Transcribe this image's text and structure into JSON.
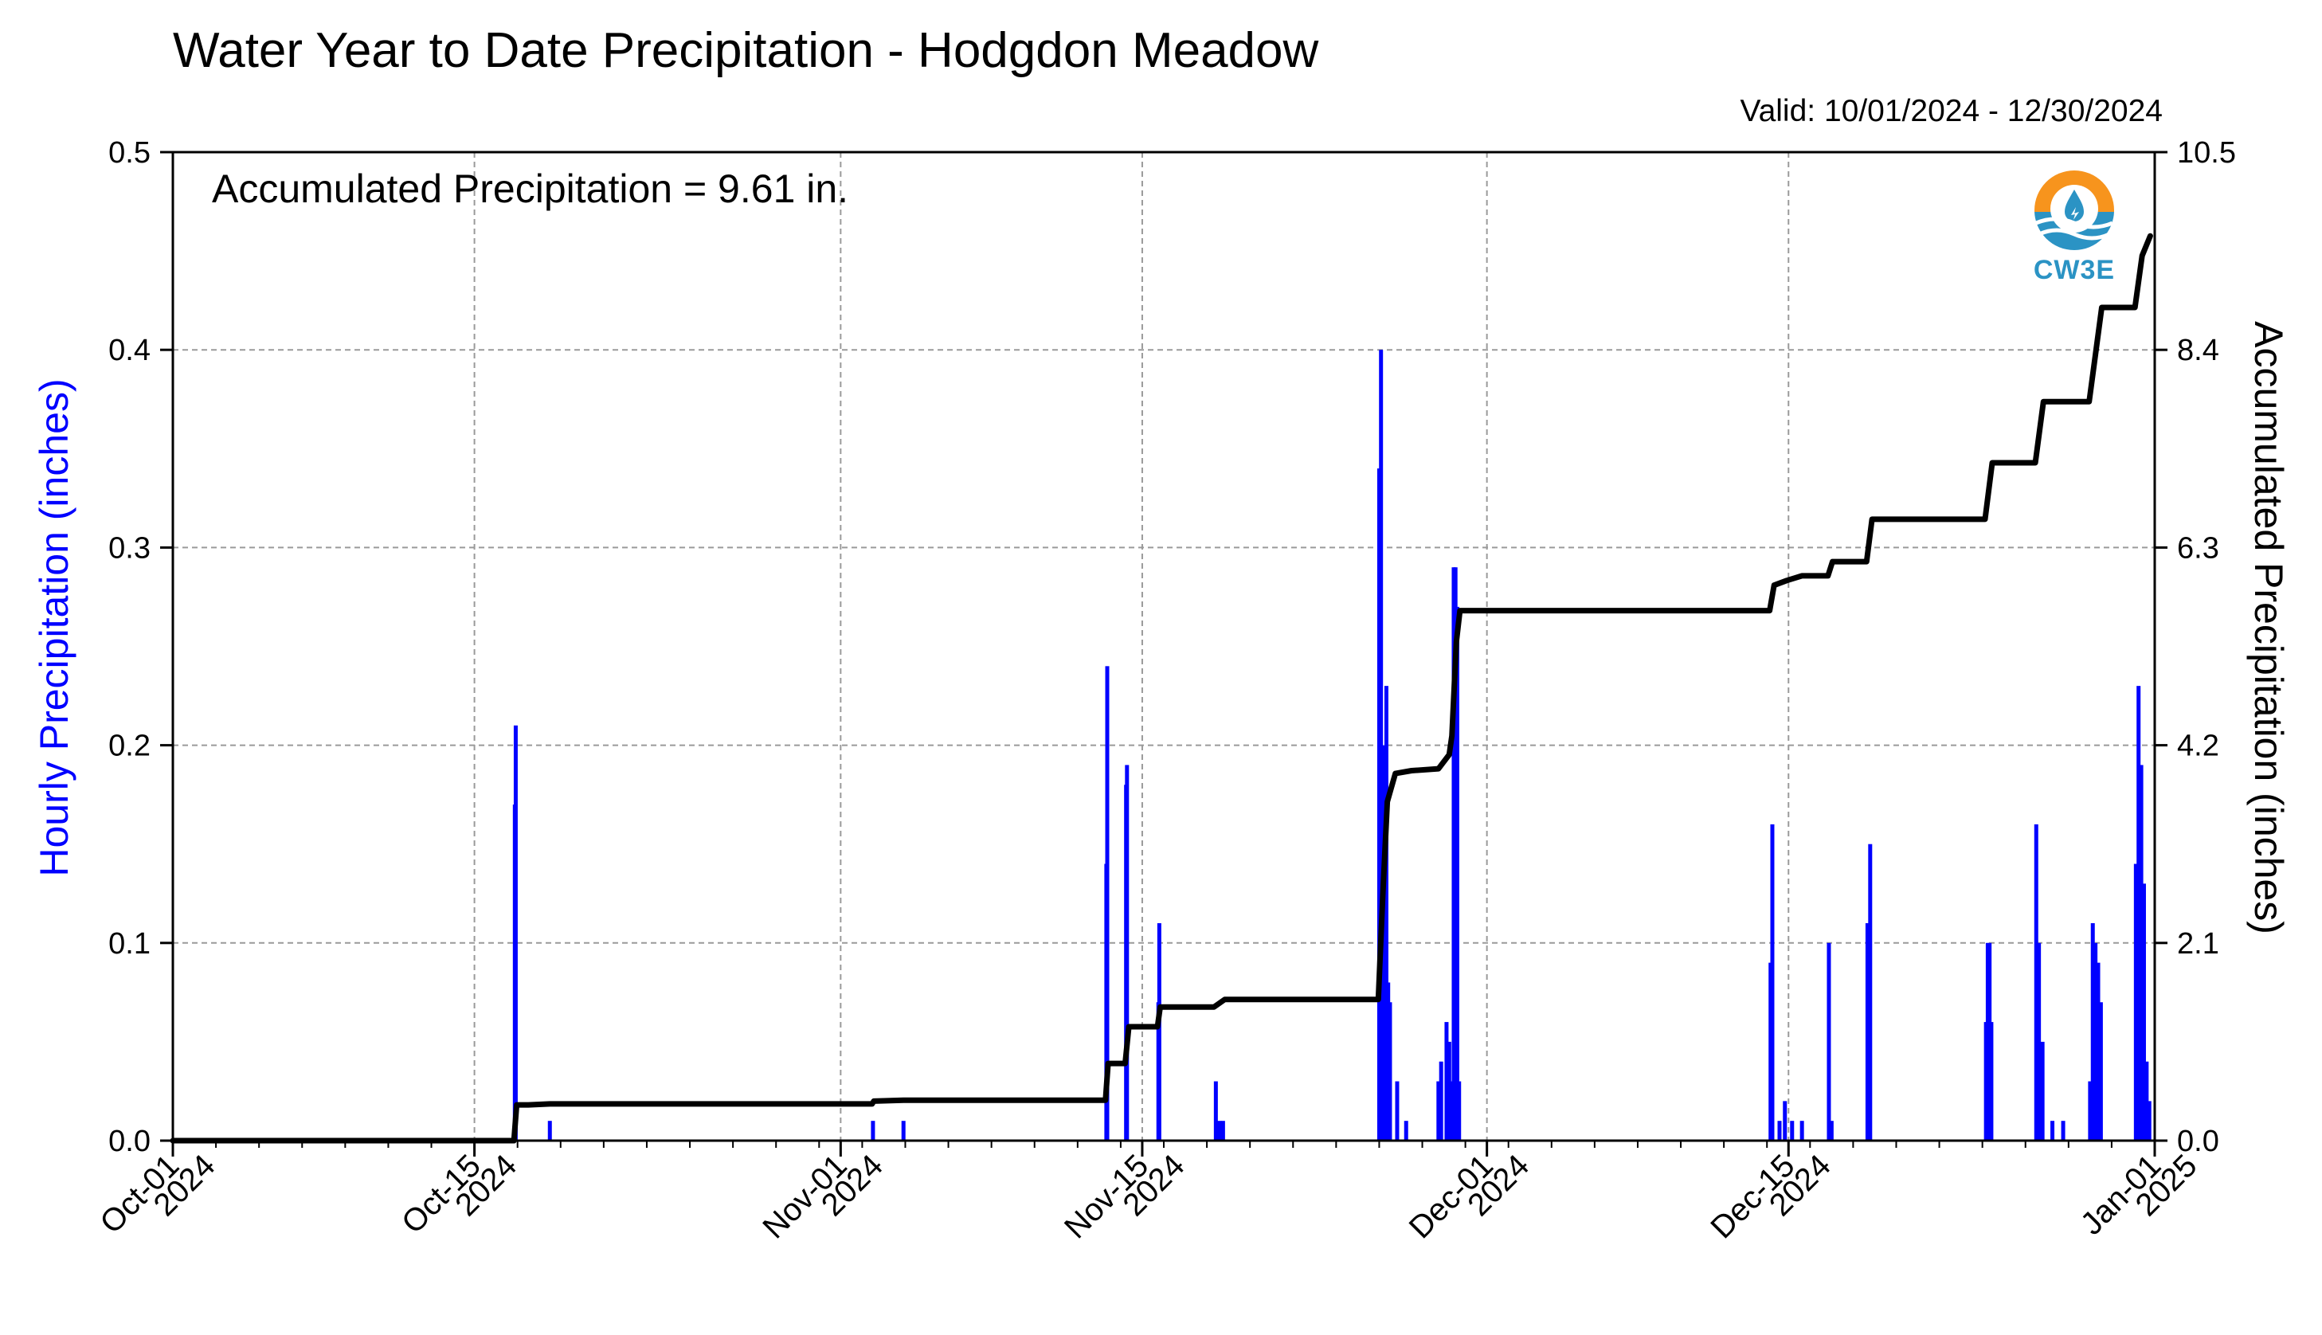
{
  "chart_data": {
    "type": "bar",
    "title": "Water Year to Date Precipitation - Hodgdon Meadow",
    "valid_text": "Valid: 10/01/2024 - 12/30/2024",
    "annotation": "Accumulated Precipitation = 9.61 in.",
    "ylabel_left": "Hourly Precipitation (inches)",
    "ylabel_right": "Accumulated Precipitation (inches)",
    "ylim_left": [
      0,
      0.5
    ],
    "ylim_right": [
      0,
      10.5
    ],
    "xlim": [
      "2024-10-01",
      "2025-01-01"
    ],
    "grid": true,
    "left_ticks": [
      "0.0",
      "0.1",
      "0.2",
      "0.3",
      "0.4",
      "0.5"
    ],
    "right_ticks": [
      "0.0",
      "2.1",
      "4.2",
      "6.3",
      "8.4",
      "10.5"
    ],
    "x_ticks": [
      {
        "date": "2024-10-01",
        "label1": "Oct-01",
        "label2": "2024"
      },
      {
        "date": "2024-10-15",
        "label1": "Oct-15",
        "label2": "2024"
      },
      {
        "date": "2024-11-01",
        "label1": "Nov-01",
        "label2": "2024"
      },
      {
        "date": "2024-11-15",
        "label1": "Nov-15",
        "label2": "2024"
      },
      {
        "date": "2024-12-01",
        "label1": "Dec-01",
        "label2": "2024"
      },
      {
        "date": "2024-12-15",
        "label1": "Dec-15",
        "label2": "2024"
      },
      {
        "date": "2025-01-01",
        "label1": "Jan-01",
        "label2": "2025"
      }
    ],
    "series": [
      {
        "name": "Hourly Precipitation",
        "color": "#0000ff",
        "style": "bars",
        "points": [
          [
            "2024-10-16T21:00",
            0.17
          ],
          [
            "2024-10-16T22:00",
            0.21
          ],
          [
            "2024-10-18T12:00",
            0.01
          ],
          [
            "2024-11-02T12:00",
            0.01
          ],
          [
            "2024-11-03T22:00",
            0.01
          ],
          [
            "2024-11-13T08:00",
            0.14
          ],
          [
            "2024-11-13T09:00",
            0.24
          ],
          [
            "2024-11-14T06:00",
            0.18
          ],
          [
            "2024-11-14T07:00",
            0.19
          ],
          [
            "2024-11-15T18:00",
            0.07
          ],
          [
            "2024-11-15T19:00",
            0.11
          ],
          [
            "2024-11-18T10:00",
            0.03
          ],
          [
            "2024-11-18T14:00",
            0.01
          ],
          [
            "2024-11-18T18:00",
            0.01
          ],
          [
            "2024-11-26T00:00",
            0.34
          ],
          [
            "2024-11-26T02:00",
            0.4
          ],
          [
            "2024-11-26T05:00",
            0.2
          ],
          [
            "2024-11-26T08:00",
            0.23
          ],
          [
            "2024-11-26T10:00",
            0.08
          ],
          [
            "2024-11-26T12:00",
            0.07
          ],
          [
            "2024-11-26T20:00",
            0.03
          ],
          [
            "2024-11-27T06:00",
            0.01
          ],
          [
            "2024-11-28T18:00",
            0.03
          ],
          [
            "2024-11-28T21:00",
            0.04
          ],
          [
            "2024-11-29T03:00",
            0.06
          ],
          [
            "2024-11-29T06:00",
            0.05
          ],
          [
            "2024-11-29T09:00",
            0.03
          ],
          [
            "2024-11-29T11:00",
            0.29
          ],
          [
            "2024-11-29T13:00",
            0.29
          ],
          [
            "2024-11-29T15:00",
            0.27
          ],
          [
            "2024-11-29T17:00",
            0.03
          ],
          [
            "2024-12-14T04:00",
            0.09
          ],
          [
            "2024-12-14T06:00",
            0.16
          ],
          [
            "2024-12-14T14:00",
            0.01
          ],
          [
            "2024-12-14T20:00",
            0.02
          ],
          [
            "2024-12-15T04:00",
            0.01
          ],
          [
            "2024-12-15T15:00",
            0.01
          ],
          [
            "2024-12-16T21:00",
            0.1
          ],
          [
            "2024-12-17T00:00",
            0.01
          ],
          [
            "2024-12-18T16:00",
            0.11
          ],
          [
            "2024-12-18T19:00",
            0.15
          ],
          [
            "2024-12-24T04:00",
            0.06
          ],
          [
            "2024-12-24T06:00",
            0.1
          ],
          [
            "2024-12-24T08:00",
            0.1
          ],
          [
            "2024-12-24T10:00",
            0.06
          ],
          [
            "2024-12-26T12:00",
            0.16
          ],
          [
            "2024-12-26T15:00",
            0.1
          ],
          [
            "2024-12-26T19:00",
            0.05
          ],
          [
            "2024-12-27T06:00",
            0.01
          ],
          [
            "2024-12-27T18:00",
            0.01
          ],
          [
            "2024-12-29T00:00",
            0.03
          ],
          [
            "2024-12-29T03:00",
            0.11
          ],
          [
            "2024-12-29T06:00",
            0.1
          ],
          [
            "2024-12-29T09:00",
            0.09
          ],
          [
            "2024-12-29T12:00",
            0.07
          ],
          [
            "2024-12-31T03:00",
            0.14
          ],
          [
            "2024-12-31T06:00",
            0.23
          ],
          [
            "2024-12-31T09:00",
            0.19
          ],
          [
            "2024-12-31T12:00",
            0.13
          ],
          [
            "2024-12-31T15:00",
            0.04
          ],
          [
            "2024-12-31T18:00",
            0.02
          ]
        ]
      },
      {
        "name": "Accumulated Precipitation",
        "color": "#000000",
        "style": "line",
        "points": [
          [
            "2024-10-01T00:00",
            0.0
          ],
          [
            "2024-10-16T20:00",
            0.0
          ],
          [
            "2024-10-16T23:00",
            0.38
          ],
          [
            "2024-10-17T12:00",
            0.38
          ],
          [
            "2024-10-18T12:00",
            0.39
          ],
          [
            "2024-11-02T11:00",
            0.39
          ],
          [
            "2024-11-02T13:00",
            0.42
          ],
          [
            "2024-11-03T22:00",
            0.43
          ],
          [
            "2024-11-13T07:00",
            0.43
          ],
          [
            "2024-11-13T10:00",
            0.82
          ],
          [
            "2024-11-14T05:00",
            0.82
          ],
          [
            "2024-11-14T09:00",
            1.21
          ],
          [
            "2024-11-15T17:00",
            1.21
          ],
          [
            "2024-11-15T20:00",
            1.42
          ],
          [
            "2024-11-18T08:00",
            1.42
          ],
          [
            "2024-11-18T20:00",
            1.5
          ],
          [
            "2024-11-25T23:00",
            1.5
          ],
          [
            "2024-11-26T04:00",
            2.6
          ],
          [
            "2024-11-26T09:00",
            3.6
          ],
          [
            "2024-11-26T18:00",
            3.9
          ],
          [
            "2024-11-27T12:00",
            3.93
          ],
          [
            "2024-11-28T18:00",
            3.95
          ],
          [
            "2024-11-29T06:00",
            4.1
          ],
          [
            "2024-11-29T09:00",
            4.3
          ],
          [
            "2024-11-29T14:00",
            5.3
          ],
          [
            "2024-11-29T18:00",
            5.63
          ],
          [
            "2024-12-14T03:00",
            5.63
          ],
          [
            "2024-12-14T08:00",
            5.9
          ],
          [
            "2024-12-14T22:00",
            5.95
          ],
          [
            "2024-12-15T15:00",
            6.0
          ],
          [
            "2024-12-16T20:00",
            6.0
          ],
          [
            "2024-12-17T01:00",
            6.15
          ],
          [
            "2024-12-18T15:00",
            6.15
          ],
          [
            "2024-12-18T21:00",
            6.6
          ],
          [
            "2024-12-24T03:00",
            6.6
          ],
          [
            "2024-12-24T11:00",
            7.2
          ],
          [
            "2024-12-26T11:00",
            7.2
          ],
          [
            "2024-12-26T20:00",
            7.85
          ],
          [
            "2024-12-28T23:00",
            7.85
          ],
          [
            "2024-12-29T13:00",
            8.85
          ],
          [
            "2024-12-31T02:00",
            8.85
          ],
          [
            "2024-12-31T10:00",
            9.4
          ],
          [
            "2024-12-31T19:00",
            9.61
          ]
        ]
      }
    ]
  },
  "logo": {
    "text": "CW3E",
    "colors": {
      "orange": "#f7941d",
      "blue": "#2b93c4"
    }
  }
}
